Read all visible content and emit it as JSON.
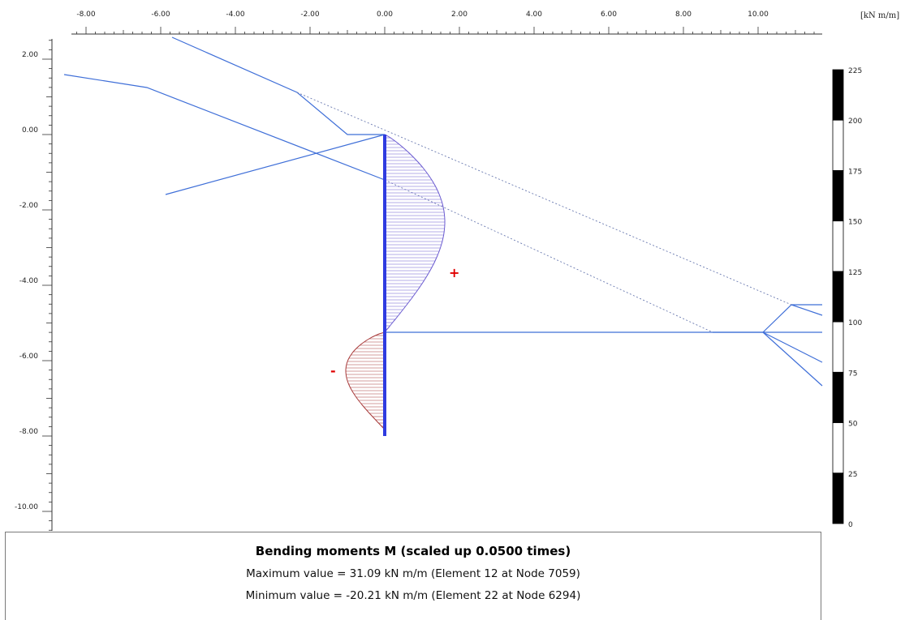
{
  "units_label": "[kN m/m]",
  "x_axis": {
    "ticks": [
      "-8.00",
      "-6.00",
      "-4.00",
      "-2.00",
      "0.00",
      "2.00",
      "4.00",
      "6.00",
      "8.00",
      "10.00"
    ]
  },
  "y_axis": {
    "ticks": [
      "2.00",
      "0.00",
      "-2.00",
      "-4.00",
      "-6.00",
      "-8.00",
      "-10.00"
    ]
  },
  "scale_bar": {
    "ticks": [
      "225",
      "200",
      "175",
      "150",
      "125",
      "100",
      "75",
      "50",
      "25",
      "0"
    ]
  },
  "signs": {
    "positive": "+",
    "negative": "-"
  },
  "colors": {
    "structure": "#3f6fd8",
    "wall": "#2f3be0",
    "positive": "#6a5ad0",
    "negative": "#a83a3a",
    "sign": "#e00000"
  },
  "results": {
    "title": "Bending moments M (scaled up 0.0500 times)",
    "max_line": "Maximum value = 31.09 kN m/m (Element 12 at Node 7059)",
    "min_line": "Minimum value = -20.21 kN m/m (Element 22 at Node 6294)"
  }
}
